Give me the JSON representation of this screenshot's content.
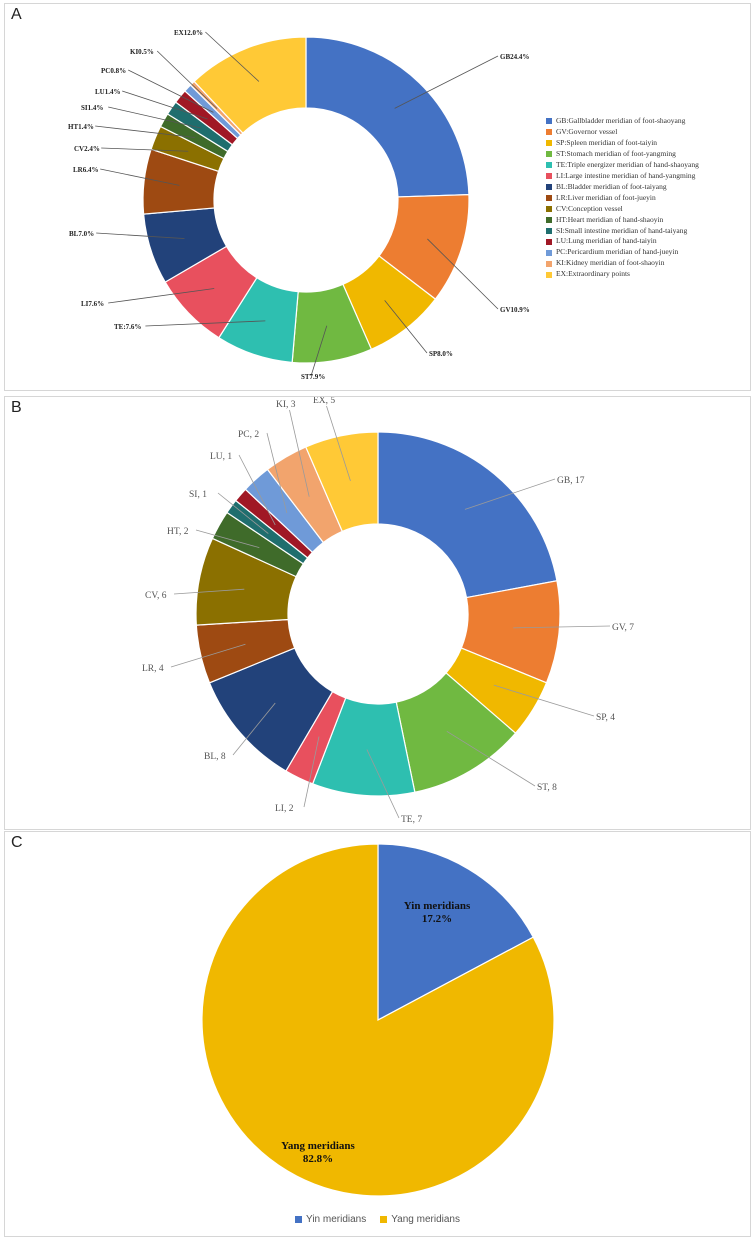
{
  "panels": {
    "a": "A",
    "b": "B",
    "c": "C"
  },
  "chart_data": [
    {
      "type": "pie",
      "panel": "A",
      "donut": true,
      "categories": [
        "GB",
        "GV",
        "SP",
        "ST",
        "TE",
        "LI",
        "BL",
        "LR",
        "CV",
        "HT",
        "SI",
        "LU",
        "PC",
        "KI",
        "EX"
      ],
      "values": [
        24.4,
        10.9,
        8.0,
        7.9,
        7.6,
        7.6,
        7.0,
        6.4,
        2.4,
        1.4,
        1.4,
        1.4,
        0.8,
        0.5,
        12.0
      ],
      "labels": [
        "GB24.4%",
        "GV10.9%",
        "SP8.0%",
        "ST7.9%",
        "TE:7.6%",
        "LI7.6%",
        "BL7.0%",
        "LR6.4%",
        "CV2.4%",
        "HT1.4%",
        "SI1.4%",
        "LU1.4%",
        "PC0.8%",
        "KI0.5%",
        "EX12.0%"
      ],
      "colors": [
        "#4472c4",
        "#ed7d31",
        "#f0b800",
        "#70b941",
        "#2ebfb0",
        "#e8505e",
        "#22427a",
        "#9e4a12",
        "#8b7000",
        "#3f6b2a",
        "#1f6e6e",
        "#a01825",
        "#6f9ad8",
        "#f2a46d",
        "#ffc936"
      ],
      "legend": [
        "GB:Gallbladder meridian of foot-shaoyang",
        "GV:Governor vessel",
        "SP:Spleen meridian of foot-taiyin",
        "ST:Stomach meridian of foot-yangming",
        "TE:Triple energizer meridian of hand-shaoyang",
        "LI:Large intestine meridian of hand-yangming",
        "BL:Bladder meridian of foot-taiyang",
        "LR:Liver meridian of foot-jueyin",
        "CV:Conception vessel",
        "HT:Heart meridian of hand-shaoyin",
        "SI:Small intestine meridian of hand-taiyang",
        "LU:Lung meridian of hand-taiyin",
        "PC:Pericardium meridian of hand-jueyin",
        "KI:Kidney meridian of foot-shaoyin",
        "EX:Extraordinary points"
      ]
    },
    {
      "type": "pie",
      "panel": "B",
      "donut": true,
      "categories": [
        "GB",
        "GV",
        "SP",
        "ST",
        "TE",
        "LI",
        "BL",
        "LR",
        "CV",
        "HT",
        "SI",
        "LU",
        "PC",
        "KI",
        "EX"
      ],
      "values": [
        17,
        7,
        4,
        8,
        7,
        2,
        8,
        4,
        6,
        2,
        1,
        1,
        2,
        3,
        5
      ],
      "labels": [
        "GB, 17",
        "GV, 7",
        "SP, 4",
        "ST, 8",
        "TE, 7",
        "LI, 2",
        "BL, 8",
        "LR, 4",
        "CV, 6",
        "HT, 2",
        "SI, 1",
        "LU, 1",
        "PC, 2",
        "KI, 3",
        "EX, 5"
      ],
      "colors": [
        "#4472c4",
        "#ed7d31",
        "#f0b800",
        "#70b941",
        "#2ebfb0",
        "#e8505e",
        "#22427a",
        "#9e4a12",
        "#8b7000",
        "#3f6b2a",
        "#1f6e6e",
        "#a01825",
        "#6f9ad8",
        "#f2a46d",
        "#ffc936"
      ]
    },
    {
      "type": "pie",
      "panel": "C",
      "donut": false,
      "categories": [
        "Yin meridians",
        "Yang meridians"
      ],
      "values": [
        17.2,
        82.8
      ],
      "labels": [
        [
          "Yin meridians",
          "17.2%"
        ],
        [
          "Yang meridians",
          "82.8%"
        ]
      ],
      "colors": [
        "#4472c4",
        "#f0b800"
      ],
      "legend": [
        "Yin meridians",
        "Yang meridians"
      ]
    }
  ]
}
